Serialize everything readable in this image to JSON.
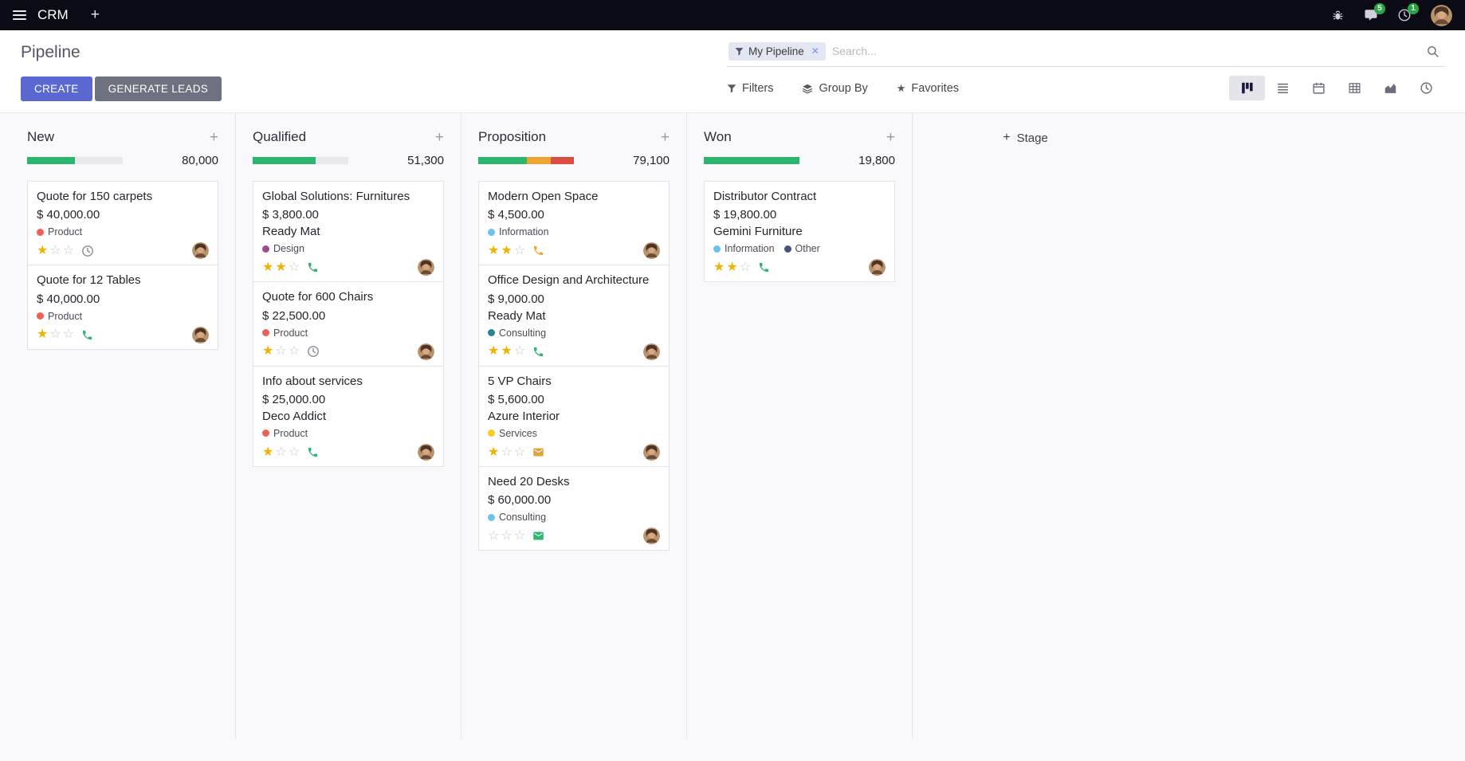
{
  "colors": {
    "accent": "#5B68D2",
    "secondary_button": "#6e7280",
    "badge_green": "#28a745",
    "progress_green": "#2cb56f",
    "progress_yellow": "#efa331",
    "progress_red": "#dc4c41"
  },
  "topbar": {
    "app_name": "CRM",
    "messages_badge": "5",
    "activities_badge": "1"
  },
  "control_panel": {
    "title": "Pipeline",
    "create_label": "CREATE",
    "generate_leads_label": "GENERATE LEADS",
    "search": {
      "facet_label": "My Pipeline",
      "placeholder": "Search..."
    },
    "menus": {
      "filters": "Filters",
      "group_by": "Group By",
      "favorites": "Favorites"
    }
  },
  "kanban": {
    "add_stage_label": "Stage",
    "columns": [
      {
        "name": "New",
        "total": "80,000",
        "progress": [
          {
            "color": "#2cb56f",
            "pct": 50
          }
        ],
        "cards": [
          {
            "title": "Quote for 150 carpets",
            "amount": "$ 40,000.00",
            "partner": "",
            "tags": [
              {
                "label": "Product",
                "color": "#f06050"
              }
            ],
            "stars_filled": 1,
            "stars_total": 3,
            "activity": {
              "type": "clock",
              "color": "#8a8a93"
            }
          },
          {
            "title": "Quote for 12 Tables",
            "amount": "$ 40,000.00",
            "partner": "",
            "tags": [
              {
                "label": "Product",
                "color": "#f06050"
              }
            ],
            "stars_filled": 1,
            "stars_total": 3,
            "activity": {
              "type": "phone",
              "color": "#2cb56f"
            }
          }
        ]
      },
      {
        "name": "Qualified",
        "total": "51,300",
        "progress": [
          {
            "color": "#2cb56f",
            "pct": 66
          }
        ],
        "cards": [
          {
            "title": "Global Solutions: Furnitures",
            "amount": "$ 3,800.00",
            "partner": "Ready Mat",
            "tags": [
              {
                "label": "Design",
                "color": "#a1488e"
              }
            ],
            "stars_filled": 2,
            "stars_total": 3,
            "activity": {
              "type": "phone",
              "color": "#2cb56f"
            }
          },
          {
            "title": "Quote for 600 Chairs",
            "amount": "$ 22,500.00",
            "partner": "",
            "tags": [
              {
                "label": "Product",
                "color": "#f06050"
              }
            ],
            "stars_filled": 1,
            "stars_total": 3,
            "activity": {
              "type": "clock",
              "color": "#8a8a93"
            }
          },
          {
            "title": "Info about services",
            "amount": "$ 25,000.00",
            "partner": "Deco Addict",
            "tags": [
              {
                "label": "Product",
                "color": "#f06050"
              }
            ],
            "stars_filled": 1,
            "stars_total": 3,
            "activity": {
              "type": "phone",
              "color": "#2cb56f"
            }
          }
        ]
      },
      {
        "name": "Proposition",
        "total": "79,100",
        "progress": [
          {
            "color": "#2cb56f",
            "pct": 51
          },
          {
            "color": "#efa331",
            "pct": 25
          },
          {
            "color": "#dc4c41",
            "pct": 24
          }
        ],
        "cards": [
          {
            "title": "Modern Open Space",
            "amount": "$ 4,500.00",
            "partner": "",
            "tags": [
              {
                "label": "Information",
                "color": "#6cc1ed"
              }
            ],
            "stars_filled": 2,
            "stars_total": 3,
            "activity": {
              "type": "phone",
              "color": "#f0a73a"
            }
          },
          {
            "title": "Office Design and Architecture",
            "amount": "$ 9,000.00",
            "partner": "Ready Mat",
            "tags": [
              {
                "label": "Consulting",
                "color": "#2c8397"
              }
            ],
            "stars_filled": 2,
            "stars_total": 3,
            "activity": {
              "type": "phone",
              "color": "#2cb56f"
            }
          },
          {
            "title": "5 VP Chairs",
            "amount": "$ 5,600.00",
            "partner": "Azure Interior",
            "tags": [
              {
                "label": "Services",
                "color": "#f7cd1f"
              }
            ],
            "stars_filled": 1,
            "stars_total": 3,
            "activity": {
              "type": "envelope",
              "color": "#dda33c"
            }
          },
          {
            "title": "Need 20 Desks",
            "amount": "$ 60,000.00",
            "partner": "",
            "tags": [
              {
                "label": "Consulting",
                "color": "#6cc1ed"
              }
            ],
            "stars_filled": 0,
            "stars_total": 3,
            "activity": {
              "type": "envelope",
              "color": "#2cb56f"
            }
          }
        ]
      },
      {
        "name": "Won",
        "total": "19,800",
        "progress": [
          {
            "color": "#2cb56f",
            "pct": 100
          }
        ],
        "cards": [
          {
            "title": "Distributor Contract",
            "amount": "$ 19,800.00",
            "partner": "Gemini Furniture",
            "tags": [
              {
                "label": "Information",
                "color": "#6cc1ed"
              },
              {
                "label": "Other",
                "color": "#475577"
              }
            ],
            "stars_filled": 2,
            "stars_total": 3,
            "activity": {
              "type": "phone",
              "color": "#2cb56f"
            }
          }
        ]
      }
    ]
  }
}
